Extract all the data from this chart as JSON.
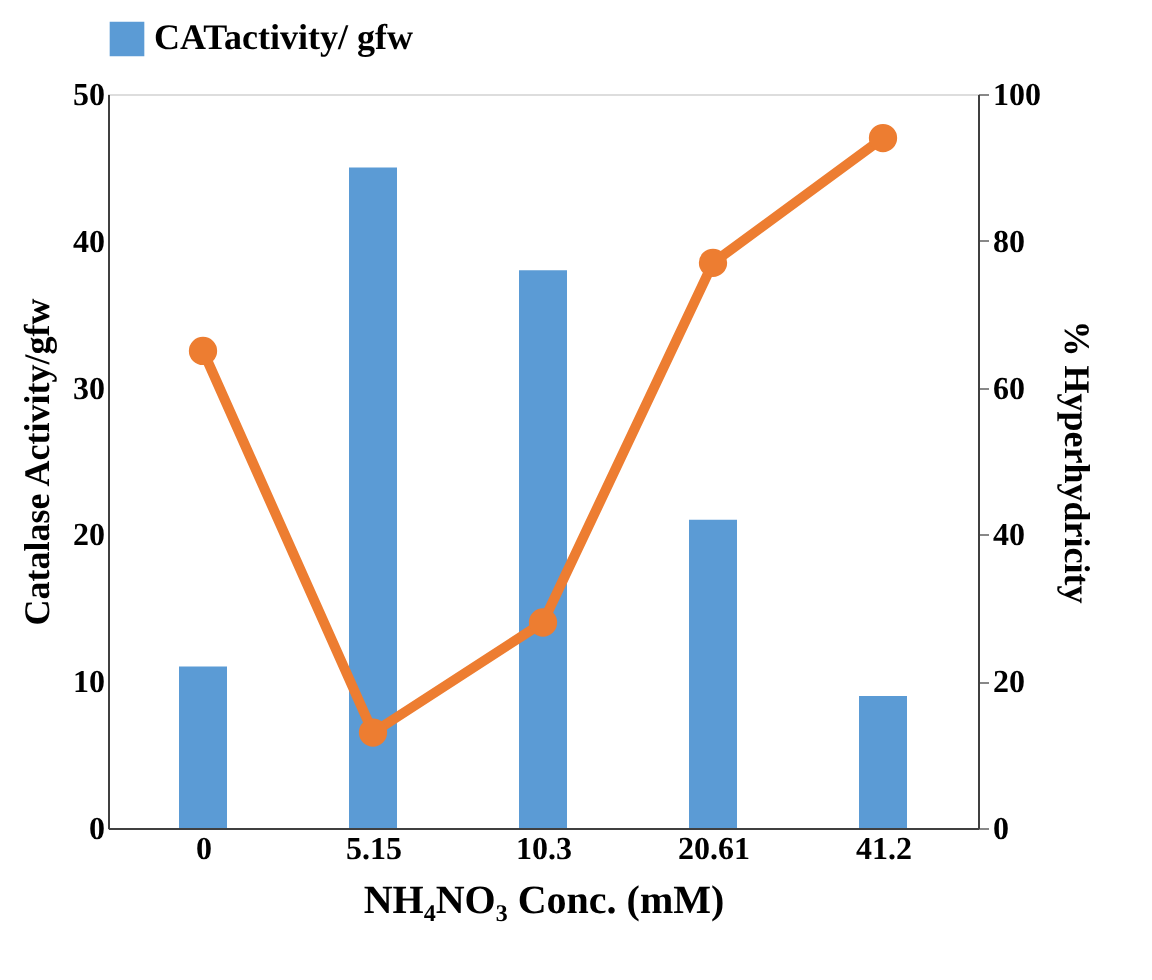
{
  "chart_data": {
    "type": "bar",
    "categories": [
      "0",
      "5.15",
      "10.3",
      "20.61",
      "41.2"
    ],
    "xlabel": "NH₄NO₃ Conc. (mM)",
    "ylabel": "Catalase Activity/gfw",
    "y2label": "% Hyperhydricity",
    "series": [
      {
        "name": "CATactivity/ gfw",
        "color": "#5b9bd5",
        "values": [
          11,
          45,
          38,
          21,
          9
        ]
      },
      {
        "type": "line",
        "axis": "y2",
        "color": "#ed7d31",
        "values": [
          65,
          13,
          28,
          77,
          94
        ],
        "marker": "circle"
      }
    ],
    "ylim": [
      0,
      50
    ],
    "yticks": [
      0,
      10,
      20,
      30,
      40,
      50
    ],
    "y2lim": [
      0,
      100
    ],
    "y2ticks": [
      0,
      20,
      40,
      60,
      80,
      100
    ],
    "grid": false,
    "legend": "top"
  }
}
